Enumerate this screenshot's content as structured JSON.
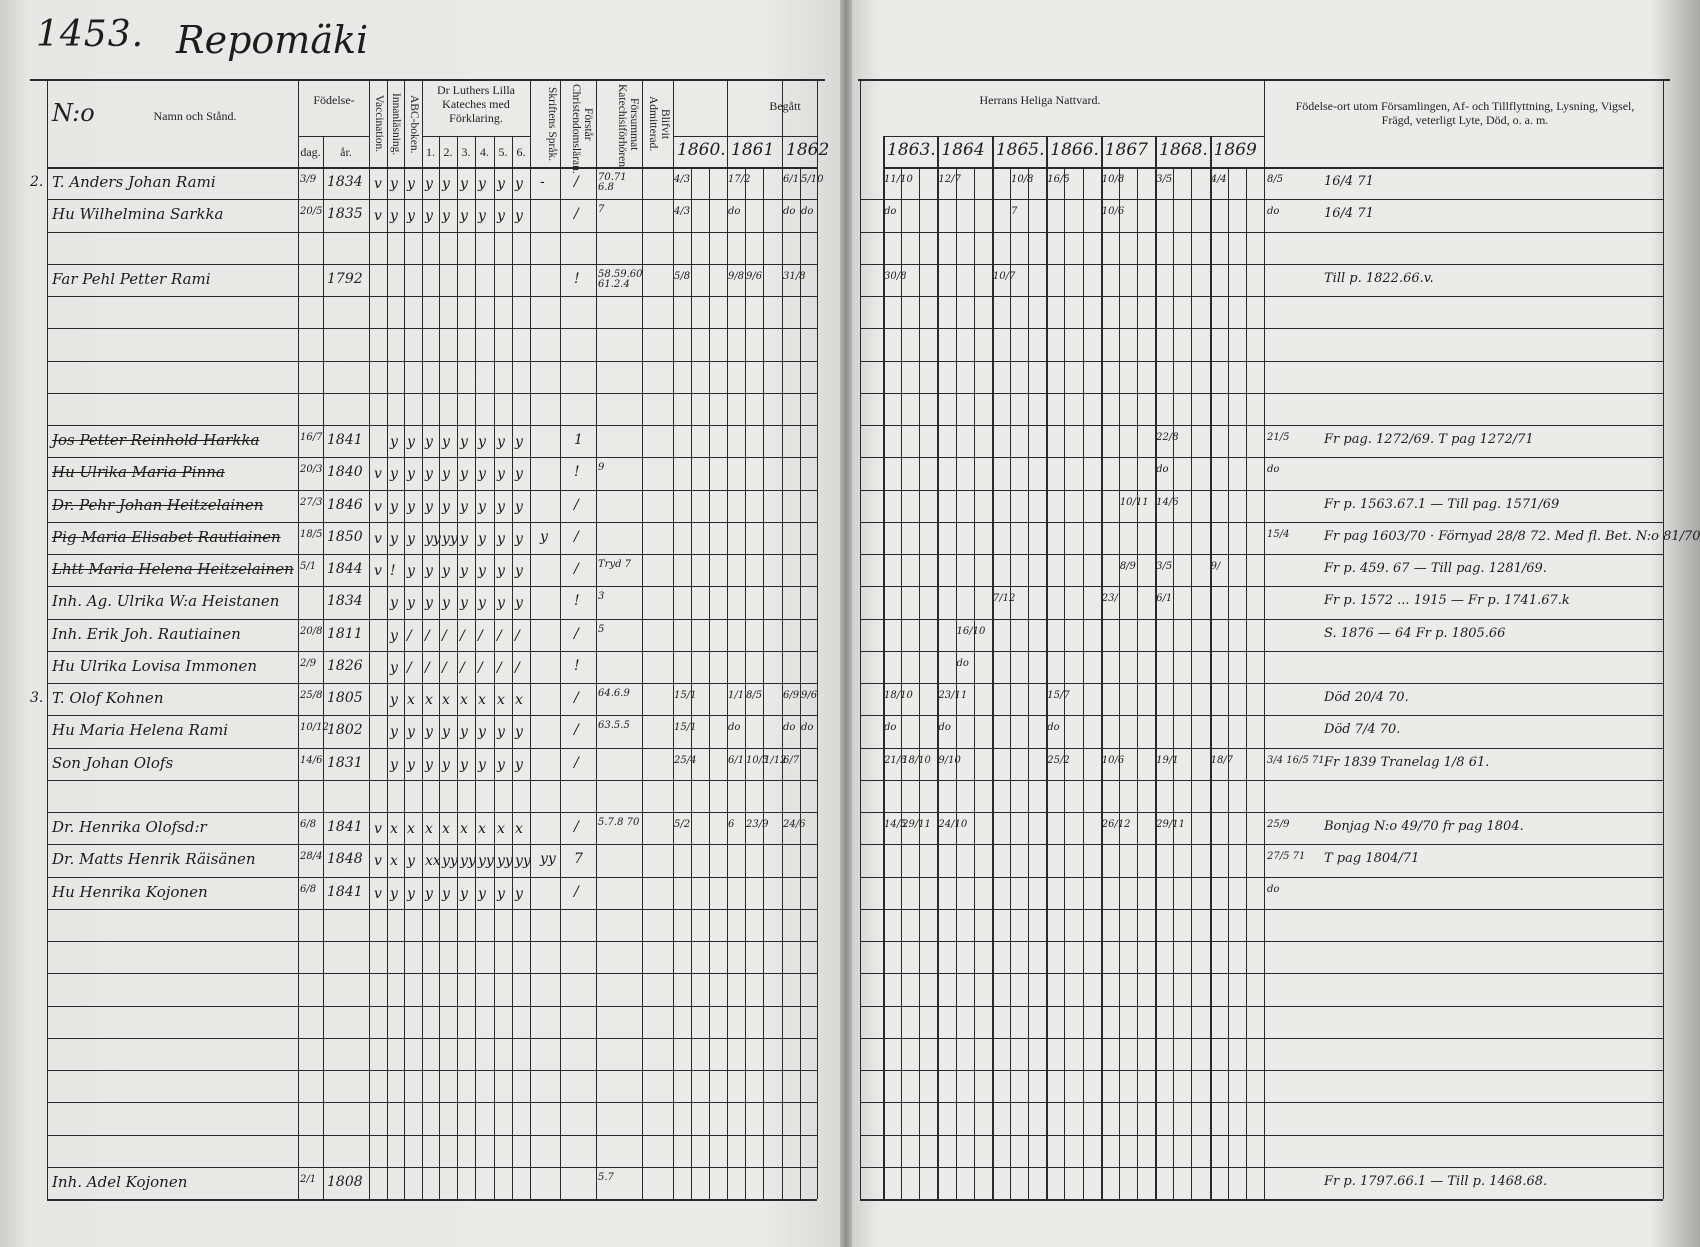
{
  "header": {
    "page_number": "1453.",
    "village": "Repomäki",
    "no_label": "N:o",
    "name_label": "Namn och Stånd.",
    "birth_label": "Födelse-",
    "day_label": "dag.",
    "year_label": "år.",
    "vaccination": "Vaccination.",
    "innanlasning": "Innanläsning.",
    "abc": "ABC-boken.",
    "luther": "Dr Luthers Lilla Kateches med Förklaring.",
    "luther_nums": [
      "1.",
      "2.",
      "3.",
      "4.",
      "5.",
      "6."
    ],
    "skrift": "Skriftens Språk.",
    "forstar": "Förstår Christendomsläran.",
    "forsummat": "Försummat Katechisiförhören.",
    "admit": "Blifvit Admitterad.",
    "begatt": "Begått",
    "nattvard": "Herrans Heliga Nattvard.",
    "years": [
      "1860.",
      "1861",
      "1862",
      "1863.",
      "1864",
      "1865.",
      "1866.",
      "1867",
      "1868.",
      "1869"
    ],
    "remarks": "Födelse-ort utom Församlingen, Af- och Tillflyttning, Lysning, Vigsel, Frägd, veterligt Lyte, Död, o. a. m."
  },
  "rows": [
    {
      "num": "2.",
      "name": "T. Anders Johan Rami",
      "dag": "3/9",
      "ar": "1834",
      "vacc": "v",
      "marks": [
        "y",
        "y",
        "y",
        "y",
        "y",
        "y",
        "y",
        "y"
      ],
      "skrift": "-",
      "forstar": "/",
      "forsummat": "70.71 6.8",
      "c1860": [
        "4/3"
      ],
      "c1861": [
        "17/2"
      ],
      "c1862": [
        "6/1",
        "5/10"
      ],
      "c1863": [
        "11/10"
      ],
      "c1864": [
        "12/7"
      ],
      "c1865": [
        "",
        "10/8"
      ],
      "c1866": [
        "16/5"
      ],
      "c1867": [
        "10/8"
      ],
      "c1868": [
        "3/5"
      ],
      "c1869": [
        "4/4"
      ],
      "pre": "8/5",
      "remarks": "16/4 71"
    },
    {
      "name": "Hu Wilhelmina Sarkka",
      "dag": "20/5",
      "ar": "1835",
      "vacc": "v",
      "marks": [
        "y",
        "y",
        "y",
        "y",
        "y",
        "y",
        "y",
        "y"
      ],
      "forstar": "/",
      "forsummat": "7",
      "c1860": [
        "4/3"
      ],
      "c1861": [
        "do"
      ],
      "c1862": [
        "do",
        "do"
      ],
      "c1863": [
        "do"
      ],
      "c1865": [
        "",
        "7"
      ],
      "c1867": [
        "10/6"
      ],
      "pre": "do",
      "remarks": "16/4 71"
    },
    {},
    {
      "name": "Far Pehl Petter Rami",
      "ar": "1792",
      "forstar": "!",
      "forsummat": "58.59.60 61.2.4",
      "c1860": [
        "5/8"
      ],
      "c1861": [
        "9/8",
        "9/6"
      ],
      "c1862": [
        "31/8"
      ],
      "c1863": [
        "30/8"
      ],
      "c1865": [
        "10/7"
      ],
      "remarks": "Till p. 1822.66.v."
    },
    {},
    {},
    {},
    {},
    {
      "name": "Jos Petter Reinhold Harkka",
      "struck": true,
      "dag": "16/7",
      "ar": "1841",
      "marks": [
        "y",
        "y",
        "y",
        "y",
        "y",
        "y",
        "y",
        "y"
      ],
      "forstar": "1",
      "c1868": [
        "22/8"
      ],
      "pre": "21/5",
      "remarks": "Fr pag. 1272/69. T pag 1272/71"
    },
    {
      "name": "Hu Ulrika Maria Pinna",
      "struck": true,
      "dag": "20/3",
      "ar": "1840",
      "vacc": "v",
      "marks": [
        "y",
        "y",
        "y",
        "y",
        "y",
        "y",
        "y",
        "y"
      ],
      "forstar": "!",
      "forsummat": "9",
      "c1868": [
        "do"
      ],
      "pre": "do"
    },
    {
      "name": "Dr. Pehr Johan Heitzelainen",
      "struck": true,
      "dag": "27/3",
      "ar": "1846",
      "vacc": "v",
      "marks": [
        "y",
        "y",
        "y",
        "y",
        "y",
        "y",
        "y",
        "y"
      ],
      "forstar": "/",
      "c1867": [
        "",
        "10/11"
      ],
      "c1868": [
        "14/6"
      ],
      "remarks": "Fr p. 1563.67.1 — Till pag. 1571/69"
    },
    {
      "name": "Pig Maria Elisabet Rautiainen",
      "struck": true,
      "dag": "18/5",
      "ar": "1850",
      "vacc": "v",
      "marks": [
        "y",
        "y",
        "yy",
        "yy",
        "y",
        "y",
        "y",
        "y"
      ],
      "skrift": "y",
      "forstar": "/",
      "pre": "15/4",
      "remarks": "Fr pag 1603/70 · Förnyad 28/8 72. Med fl. Bet. N:o 81/70 till Nyslott"
    },
    {
      "name": "Lhtt Maria Helena Heitzelainen",
      "struck": true,
      "dag": "5/1",
      "ar": "1844",
      "vacc": "v",
      "marks": [
        "!",
        "y",
        "y",
        "y",
        "y",
        "y",
        "y",
        "y"
      ],
      "forstar": "/",
      "forsummat": "Tryd 7",
      "c1867": [
        "",
        "8/9"
      ],
      "c1868": [
        "3/5"
      ],
      "c1869": [
        "9/"
      ],
      "remarks": "Fr p. 459. 67 — Till pag. 1281/69."
    },
    {
      "name": "Inh. Ag. Ulrika W:a Heistanen",
      "ar": "1834",
      "marks": [
        "y",
        "y",
        "y",
        "y",
        "y",
        "y",
        "y",
        "y"
      ],
      "forstar": "!",
      "forsummat": "3",
      "c1865": [
        "7/12"
      ],
      "c1867": [
        "23/"
      ],
      "c1868": [
        "6/1"
      ],
      "remarks": "Fr p. 1572 ... 1915 — Fr p. 1741.67.k"
    },
    {
      "name": "Inh. Erik Joh. Rautiainen",
      "dag": "20/8",
      "ar": "1811",
      "marks": [
        "y",
        "/",
        "/",
        "/",
        "/",
        "/",
        "/",
        "/"
      ],
      "forstar": "/",
      "forsummat": "5",
      "c1864": [
        "",
        "16/10"
      ],
      "remarks": "S. 1876 — 64 Fr p. 1805.66"
    },
    {
      "name": "Hu Ulrika Lovisa Immonen",
      "dag": "2/9",
      "ar": "1826",
      "marks": [
        "y",
        "/",
        "/",
        "/",
        "/",
        "/",
        "/",
        "/"
      ],
      "forstar": "!",
      "c1864": [
        "",
        "do"
      ]
    },
    {
      "num": "3.",
      "name": "T. Olof Kohnen",
      "dag": "25/8",
      "ar": "1805",
      "marks": [
        "y",
        "x",
        "x",
        "x",
        "x",
        "x",
        "x",
        "x"
      ],
      "forstar": "/",
      "forsummat": "64.6.9",
      "c1860": [
        "15/1"
      ],
      "c1861": [
        "1/1",
        "8/5"
      ],
      "c1862": [
        "6/9",
        "9/6"
      ],
      "c1863": [
        "18/10"
      ],
      "c1864": [
        "23/11"
      ],
      "c1866": [
        "15/7"
      ],
      "remarks": "Död 20/4 70."
    },
    {
      "name": "Hu Maria Helena Rami",
      "dag": "10/12",
      "ar": "1802",
      "marks": [
        "y",
        "y",
        "y",
        "y",
        "y",
        "y",
        "y",
        "y"
      ],
      "forstar": "/",
      "forsummat": "63.5.5",
      "c1860": [
        "15/1"
      ],
      "c1861": [
        "do"
      ],
      "c1862": [
        "do",
        "do"
      ],
      "c1863": [
        "do"
      ],
      "c1864": [
        "do"
      ],
      "c1866": [
        "do"
      ],
      "remarks": "Död 7/4 70."
    },
    {
      "name": "Son Johan Olofs",
      "dag": "14/6",
      "ar": "1831",
      "marks": [
        "y",
        "y",
        "y",
        "y",
        "y",
        "y",
        "y",
        "y"
      ],
      "forstar": "/",
      "c1860": [
        "25/4"
      ],
      "c1861": [
        "6/1",
        "10/5",
        "1/12"
      ],
      "c1862": [
        "6/7"
      ],
      "c1863": [
        "21/6",
        "18/10"
      ],
      "c1864": [
        "9/10"
      ],
      "c1866": [
        "25/2"
      ],
      "c1867": [
        "10/6"
      ],
      "c1868": [
        "19/1"
      ],
      "c1869": [
        "18/7"
      ],
      "pre": "3/4 16/5 71.",
      "remarks": "Fr 1839 Tranelag 1/8 61."
    },
    {},
    {
      "name": "Dr. Henrika Olofsd:r",
      "dag": "6/8",
      "ar": "1841",
      "vacc": "v",
      "marks": [
        "x",
        "x",
        "x",
        "x",
        "x",
        "x",
        "x",
        "x"
      ],
      "forstar": "/",
      "forsummat": "5.7.8 70",
      "c1860": [
        "5/2"
      ],
      "c1861": [
        "6",
        "23/9"
      ],
      "c1862": [
        "24/6"
      ],
      "c1863": [
        "14/5",
        "29/11"
      ],
      "c1864": [
        "24/10"
      ],
      "c1867": [
        "26/12"
      ],
      "c1868": [
        "29/11"
      ],
      "pre": "25/9",
      "remarks": "Bonjag N:o 49/70 fr pag 1804."
    },
    {
      "name": "Dr. Matts Henrik Räisänen",
      "dag": "28/4",
      "ar": "1848",
      "vacc": "v",
      "marks": [
        "x",
        "y",
        "xx",
        "yy",
        "yy",
        "yy",
        "yy",
        "yy"
      ],
      "skrift": "yy",
      "forstar": "7",
      "pre": "27/5 71",
      "remarks": "T pag 1804/71"
    },
    {
      "name": "Hu Henrika Kojonen",
      "dag": "6/8",
      "ar": "1841",
      "vacc": "v",
      "marks": [
        "y",
        "y",
        "y",
        "y",
        "y",
        "y",
        "y",
        "y"
      ],
      "forstar": "/",
      "pre": "do"
    },
    {},
    {},
    {},
    {},
    {},
    {},
    {},
    {},
    {
      "name": "Inh. Adel Kojonen",
      "dag": "2/1",
      "ar": "1808",
      "forsummat": "5.7",
      "remarks": "Fr p. 1797.66.1 — Till p. 1468.68."
    }
  ]
}
